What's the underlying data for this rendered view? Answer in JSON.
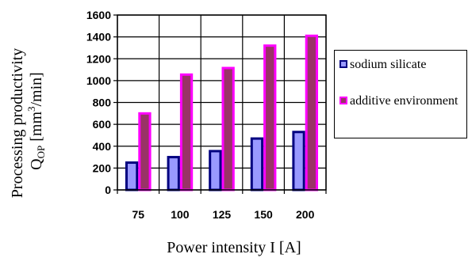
{
  "chart_data": {
    "type": "bar",
    "categories": [
      "75",
      "100",
      "125",
      "150",
      "200"
    ],
    "series": [
      {
        "name": "sodium silicate",
        "values": [
          250,
          300,
          355,
          470,
          530
        ],
        "color": "#9999ff",
        "edge": "#000080"
      },
      {
        "name": "additive environment",
        "values": [
          700,
          1055,
          1115,
          1320,
          1410
        ],
        "color": "#993366",
        "edge": "#ff00ff"
      }
    ],
    "yticks": [
      "0",
      "200",
      "400",
      "600",
      "800",
      "1000",
      "1200",
      "1400",
      "1600"
    ],
    "ylim": [
      0,
      1600
    ],
    "grid": true,
    "legend_position": "right",
    "xlabel": "Power intensity I [A]",
    "ylabel_line1": "Processing productivity",
    "ylabel_line2_main": "Q",
    "ylabel_line2_sub": "OP",
    "ylabel_line2_unit_pre": " [mm",
    "ylabel_line2_sup": "3",
    "ylabel_line2_unit_post": "/min]"
  }
}
